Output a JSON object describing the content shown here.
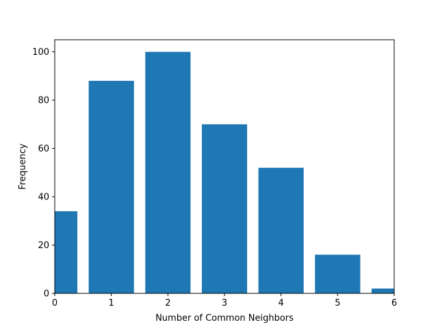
{
  "chart_data": {
    "type": "bar",
    "x": [
      0,
      1,
      2,
      3,
      4,
      5,
      6
    ],
    "values": [
      34,
      88,
      100,
      70,
      52,
      16,
      2
    ],
    "bar_width": 0.8,
    "xlabel": "Number of Common Neighbors",
    "ylabel": "Frequency",
    "xlim": [
      0,
      6
    ],
    "ylim": [
      0,
      105
    ],
    "xticks": [
      0,
      1,
      2,
      3,
      4,
      5,
      6
    ],
    "yticks": [
      0,
      20,
      40,
      60,
      80,
      100
    ],
    "grid": false,
    "legend": "none",
    "bar_color": "#1f77b4"
  }
}
